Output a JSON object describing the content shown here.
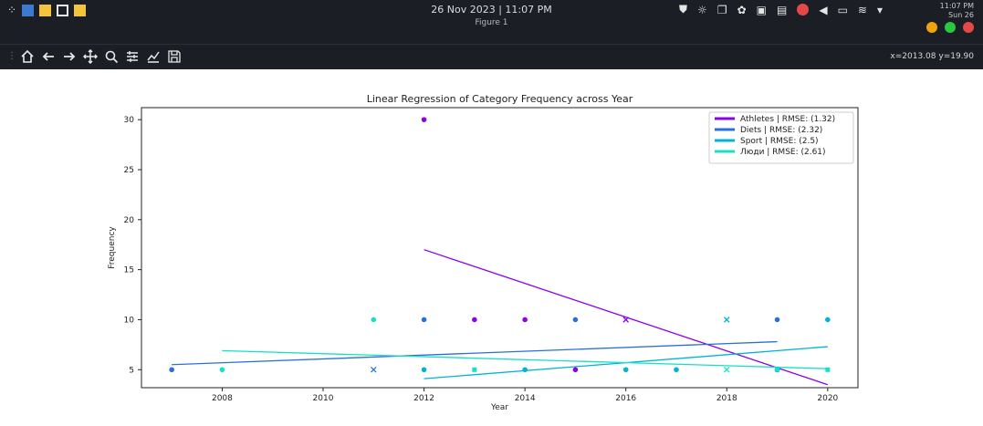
{
  "window": {
    "datetime": "26 Nov 2023 | 11:07 PM",
    "title": "Figure 1",
    "clock_time": "11:07 PM",
    "clock_day": "Sun 26",
    "buttons": {
      "minimize": "#f0a30a",
      "maximize": "#28c840",
      "close": "#e54848"
    }
  },
  "toolbar": {
    "icons": [
      "home-icon",
      "back-arrow-icon",
      "forward-arrow-icon",
      "pan-icon",
      "zoom-icon",
      "subplots-icon",
      "edit-axes-icon",
      "save-icon"
    ],
    "coords": "x=2013.08 y=19.90"
  },
  "chart_data": {
    "type": "scatter",
    "title": "Linear Regression of Category Frequency across Year",
    "xlabel": "Year",
    "ylabel": "Frequency",
    "xlim": [
      2006.4,
      2020.6
    ],
    "ylim": [
      3.2,
      31.2
    ],
    "xticks": [
      2008,
      2010,
      2012,
      2014,
      2016,
      2018,
      2020
    ],
    "yticks": [
      5,
      10,
      15,
      20,
      25,
      30
    ],
    "legend_position": "top-right",
    "series": [
      {
        "name": "Athletes | RMSE: (1.32)",
        "color": "#8b00ee",
        "points": [
          {
            "x": 2012,
            "y": 30,
            "marker": "o"
          },
          {
            "x": 2013,
            "y": 10,
            "marker": "o"
          },
          {
            "x": 2014,
            "y": 10,
            "marker": "o"
          },
          {
            "x": 2015,
            "y": 5,
            "marker": "o"
          },
          {
            "x": 2016,
            "y": 10,
            "marker": "x"
          },
          {
            "x": 2019,
            "y": 5,
            "marker": "o"
          }
        ],
        "fit": [
          {
            "x": 2012,
            "y": 17
          },
          {
            "x": 2020,
            "y": 3.5
          }
        ]
      },
      {
        "name": "Diets | RMSE: (2.32)",
        "color": "#2a6fdb",
        "points": [
          {
            "x": 2007,
            "y": 5,
            "marker": "o"
          },
          {
            "x": 2011,
            "y": 5,
            "marker": "x"
          },
          {
            "x": 2012,
            "y": 10,
            "marker": "o"
          },
          {
            "x": 2015,
            "y": 10,
            "marker": "o"
          },
          {
            "x": 2019,
            "y": 10,
            "marker": "o"
          }
        ],
        "fit": [
          {
            "x": 2007,
            "y": 5.5
          },
          {
            "x": 2019,
            "y": 7.8
          }
        ]
      },
      {
        "name": "Sport | RMSE: (2.5)",
        "color": "#00b4d8",
        "points": [
          {
            "x": 2012,
            "y": 5,
            "marker": "o"
          },
          {
            "x": 2014,
            "y": 5,
            "marker": "o"
          },
          {
            "x": 2016,
            "y": 5,
            "marker": "o"
          },
          {
            "x": 2017,
            "y": 5,
            "marker": "o"
          },
          {
            "x": 2018,
            "y": 10,
            "marker": "x"
          },
          {
            "x": 2020,
            "y": 10,
            "marker": "o"
          }
        ],
        "fit": [
          {
            "x": 2012,
            "y": 4.1
          },
          {
            "x": 2020,
            "y": 7.3
          }
        ]
      },
      {
        "name": "Люди | RMSE: (2.61)",
        "color": "#18e0c4",
        "points": [
          {
            "x": 2008,
            "y": 5,
            "marker": "o"
          },
          {
            "x": 2011,
            "y": 10,
            "marker": "o"
          },
          {
            "x": 2013,
            "y": 5,
            "marker": "s"
          },
          {
            "x": 2018,
            "y": 5,
            "marker": "x"
          },
          {
            "x": 2019,
            "y": 5,
            "marker": "s"
          },
          {
            "x": 2020,
            "y": 5,
            "marker": "s"
          }
        ],
        "fit": [
          {
            "x": 2008,
            "y": 6.9
          },
          {
            "x": 2020,
            "y": 5.1
          }
        ]
      }
    ]
  }
}
